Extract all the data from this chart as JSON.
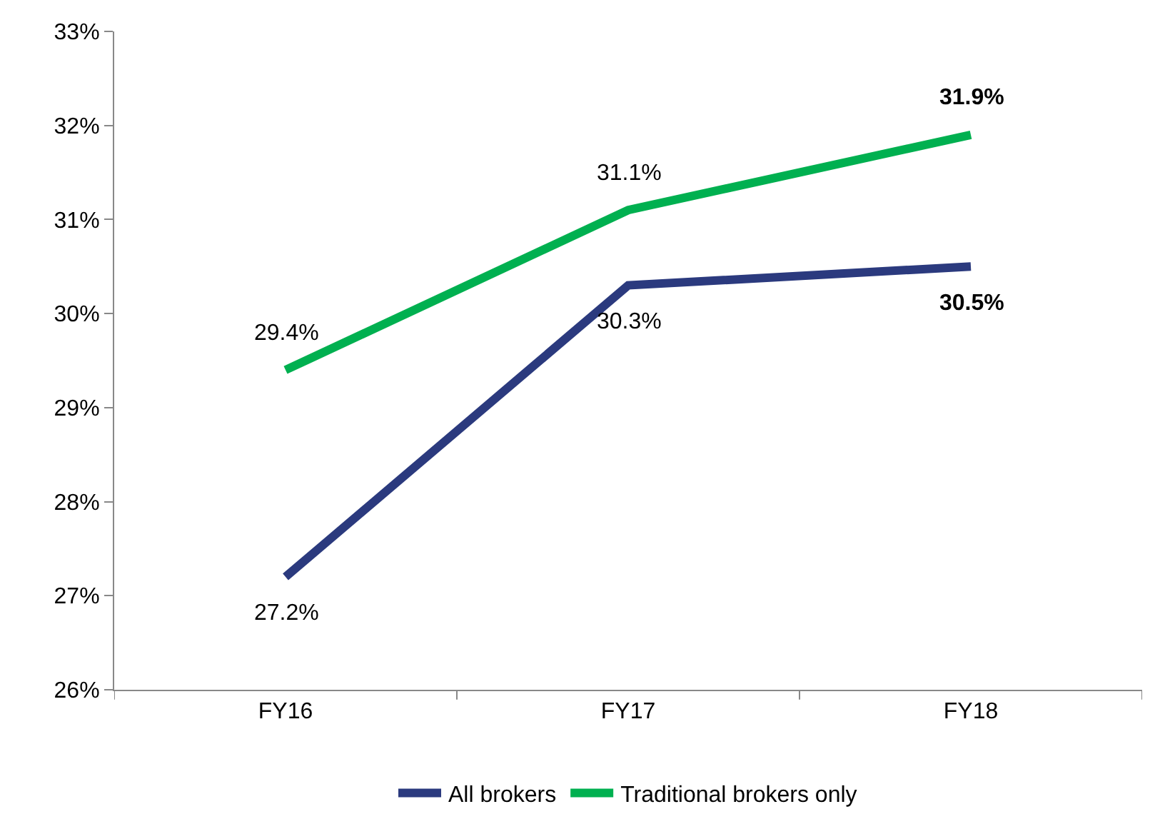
{
  "chart_data": {
    "type": "line",
    "categories": [
      "FY16",
      "FY17",
      "FY18"
    ],
    "series": [
      {
        "name": "All brokers",
        "color": "#2b3a7e",
        "values": [
          27.2,
          30.3,
          30.5
        ],
        "value_labels": [
          "27.2%",
          "30.3%",
          "30.5%"
        ]
      },
      {
        "name": "Traditional brokers only",
        "color": "#00b050",
        "values": [
          29.4,
          31.1,
          31.9
        ],
        "value_labels": [
          "29.4%",
          "31.1%",
          "31.9%"
        ]
      }
    ],
    "ylim": [
      26,
      33
    ],
    "yticks": [
      {
        "value": 26,
        "label": "26%"
      },
      {
        "value": 27,
        "label": "27%"
      },
      {
        "value": 28,
        "label": "28%"
      },
      {
        "value": 29,
        "label": "29%"
      },
      {
        "value": 30,
        "label": "30%"
      },
      {
        "value": 31,
        "label": "31%"
      },
      {
        "value": 32,
        "label": "32%"
      },
      {
        "value": 33,
        "label": "33%"
      }
    ],
    "legend": "bottom",
    "marker": "none",
    "line_style": "solid"
  }
}
